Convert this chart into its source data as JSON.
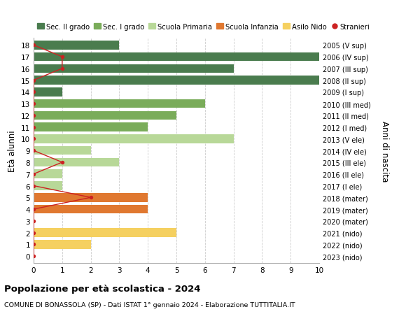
{
  "ages": [
    18,
    17,
    16,
    15,
    14,
    13,
    12,
    11,
    10,
    9,
    8,
    7,
    6,
    5,
    4,
    3,
    2,
    1,
    0
  ],
  "right_labels": [
    "2005 (V sup)",
    "2006 (IV sup)",
    "2007 (III sup)",
    "2008 (II sup)",
    "2009 (I sup)",
    "2010 (III med)",
    "2011 (II med)",
    "2012 (I med)",
    "2013 (V ele)",
    "2014 (IV ele)",
    "2015 (III ele)",
    "2016 (II ele)",
    "2017 (I ele)",
    "2018 (mater)",
    "2019 (mater)",
    "2020 (mater)",
    "2021 (nido)",
    "2022 (nido)",
    "2023 (nido)"
  ],
  "bar_values": [
    3,
    10,
    7,
    10,
    1,
    6,
    5,
    4,
    7,
    2,
    3,
    1,
    1,
    4,
    4,
    0,
    5,
    2,
    0
  ],
  "bar_colors": [
    "#4a7c4e",
    "#4a7c4e",
    "#4a7c4e",
    "#4a7c4e",
    "#4a7c4e",
    "#7aac5a",
    "#7aac5a",
    "#7aac5a",
    "#b8d898",
    "#b8d898",
    "#b8d898",
    "#b8d898",
    "#b8d898",
    "#e07830",
    "#e07830",
    "#e07830",
    "#f5d060",
    "#f5d060",
    "#f5d060"
  ],
  "stranieri_values": [
    0,
    1,
    1,
    0,
    0,
    0,
    0,
    0,
    0,
    0,
    1,
    0,
    0,
    2,
    0,
    0,
    0,
    0,
    0
  ],
  "stranieri_color": "#cc2222",
  "title": "Popolazione per età scolastica - 2024",
  "subtitle": "COMUNE DI BONASSOLA (SP) - Dati ISTAT 1° gennaio 2024 - Elaborazione TUTTITALIA.IT",
  "ylabel": "Età alunni",
  "right_ylabel": "Anni di nascita",
  "xlim": [
    0,
    10
  ],
  "xticks": [
    0,
    1,
    2,
    3,
    4,
    5,
    6,
    7,
    8,
    9,
    10
  ],
  "legend_labels": [
    "Sec. II grado",
    "Sec. I grado",
    "Scuola Primaria",
    "Scuola Infanzia",
    "Asilo Nido",
    "Stranieri"
  ],
  "legend_colors": [
    "#4a7c4e",
    "#7aac5a",
    "#b8d898",
    "#e07830",
    "#f5d060",
    "#cc2222"
  ],
  "bg_color": "#ffffff",
  "grid_color": "#cccccc"
}
